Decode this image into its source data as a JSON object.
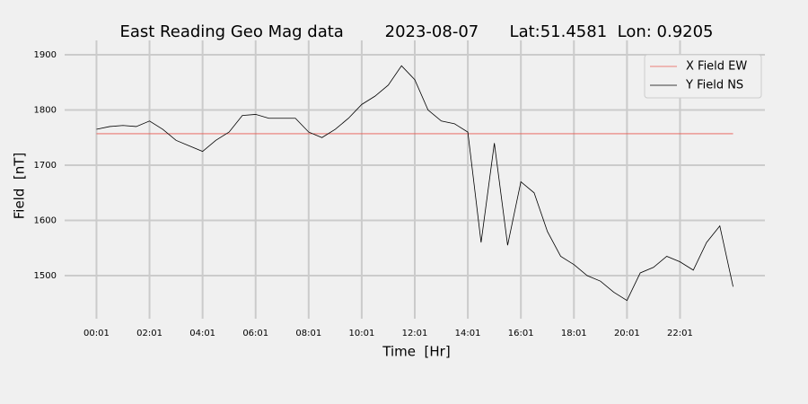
{
  "chart_data": {
    "type": "line",
    "title": "East Reading Geo Mag data        2023-08-07      Lat:51.4581  Lon: 0.9205",
    "x_label": "Time  [Hr]",
    "y_label": "Field  [nT]",
    "x": [
      1,
      31,
      61,
      91,
      121,
      151,
      181,
      211,
      241,
      271,
      301,
      331,
      361,
      391,
      421,
      451,
      481,
      511,
      541,
      571,
      601,
      631,
      661,
      691,
      721,
      751,
      781,
      811,
      841,
      871,
      901,
      931,
      961,
      991,
      1021,
      1051,
      1081,
      1111,
      1141,
      1171,
      1201,
      1231,
      1261,
      1291,
      1321,
      1351,
      1381,
      1411,
      1441
    ],
    "series": [
      {
        "name": "X Field EW",
        "color": "#e8584f",
        "values": [
          1757,
          1757,
          1757,
          1757,
          1757,
          1757,
          1757,
          1757,
          1757,
          1757,
          1757,
          1757,
          1757,
          1757,
          1757,
          1757,
          1757,
          1757,
          1757,
          1757,
          1757,
          1757,
          1757,
          1757,
          1757,
          1757,
          1757,
          1757,
          1757,
          1757,
          1757,
          1757,
          1757,
          1757,
          1757,
          1757,
          1757,
          1757,
          1757,
          1757,
          1757,
          1757,
          1757,
          1757,
          1757,
          1757,
          1757,
          1757,
          1757
        ]
      },
      {
        "name": "Y Field NS",
        "color": "#000000",
        "values": [
          1765,
          1770,
          1772,
          1770,
          1780,
          1765,
          1745,
          1735,
          1725,
          1745,
          1760,
          1790,
          1792,
          1785,
          1785,
          1785,
          1760,
          1750,
          1765,
          1785,
          1810,
          1825,
          1845,
          1880,
          1855,
          1800,
          1780,
          1775,
          1760,
          1560,
          1740,
          1555,
          1670,
          1650,
          1580,
          1535,
          1520,
          1500,
          1490,
          1470,
          1455,
          1505,
          1515,
          1535,
          1525,
          1510,
          1560,
          1590,
          1480
        ]
      }
    ],
    "xlim": [
      -71,
      1513
    ],
    "ylim": [
      1422,
      1926
    ],
    "xticks": [
      {
        "value": 1,
        "label": "00:01"
      },
      {
        "value": 121,
        "label": "02:01"
      },
      {
        "value": 241,
        "label": "04:01"
      },
      {
        "value": 361,
        "label": "06:01"
      },
      {
        "value": 481,
        "label": "08:01"
      },
      {
        "value": 601,
        "label": "10:01"
      },
      {
        "value": 721,
        "label": "12:01"
      },
      {
        "value": 841,
        "label": "14:01"
      },
      {
        "value": 961,
        "label": "16:01"
      },
      {
        "value": 1081,
        "label": "18:01"
      },
      {
        "value": 1201,
        "label": "20:01"
      },
      {
        "value": 1321,
        "label": "22:01"
      }
    ],
    "yticks": [
      1500,
      1600,
      1700,
      1800,
      1900
    ],
    "grid": true,
    "legend": "upper-right"
  }
}
